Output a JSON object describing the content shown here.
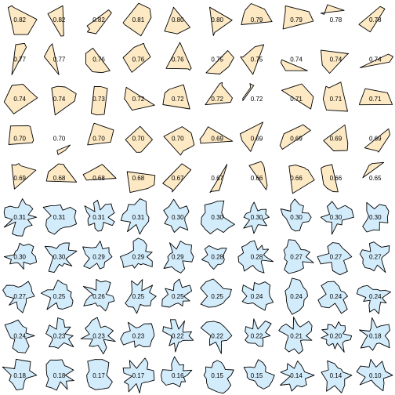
{
  "colors": {
    "high_fill": "#fde9c4",
    "low_fill": "#d3ecfb",
    "stroke": "#000000",
    "background": "#ffffff"
  },
  "grid": {
    "rows": 10,
    "cols": 10
  },
  "shapes": [
    {
      "label": "0.82",
      "kind": "convex"
    },
    {
      "label": "0.82",
      "kind": "convex"
    },
    {
      "label": "0.82",
      "kind": "convex"
    },
    {
      "label": "0.81",
      "kind": "convex"
    },
    {
      "label": "0.80",
      "kind": "convex"
    },
    {
      "label": "0.80",
      "kind": "convex"
    },
    {
      "label": "0.79",
      "kind": "convex"
    },
    {
      "label": "0.79",
      "kind": "convex"
    },
    {
      "label": "0.78",
      "kind": "convex"
    },
    {
      "label": "0.78",
      "kind": "convex"
    },
    {
      "label": "0.77",
      "kind": "convex"
    },
    {
      "label": "0.77",
      "kind": "convex"
    },
    {
      "label": "0.76",
      "kind": "convex"
    },
    {
      "label": "0.76",
      "kind": "convex"
    },
    {
      "label": "0.76",
      "kind": "convex"
    },
    {
      "label": "0.75",
      "kind": "convex"
    },
    {
      "label": "0.75",
      "kind": "convex"
    },
    {
      "label": "0.74",
      "kind": "convex"
    },
    {
      "label": "0.74",
      "kind": "convex"
    },
    {
      "label": "0.74",
      "kind": "convex"
    },
    {
      "label": "0.74",
      "kind": "convex"
    },
    {
      "label": "0.74",
      "kind": "convex"
    },
    {
      "label": "0.73",
      "kind": "convex"
    },
    {
      "label": "0.72",
      "kind": "convex"
    },
    {
      "label": "0.72",
      "kind": "convex"
    },
    {
      "label": "0.72",
      "kind": "convex"
    },
    {
      "label": "0.72",
      "kind": "convex"
    },
    {
      "label": "0.71",
      "kind": "convex"
    },
    {
      "label": "0.71",
      "kind": "convex"
    },
    {
      "label": "0.71",
      "kind": "convex"
    },
    {
      "label": "0.70",
      "kind": "convex"
    },
    {
      "label": "0.70",
      "kind": "convex"
    },
    {
      "label": "0.70",
      "kind": "convex"
    },
    {
      "label": "0.70",
      "kind": "convex"
    },
    {
      "label": "0.70",
      "kind": "convex"
    },
    {
      "label": "0.69",
      "kind": "convex"
    },
    {
      "label": "0.69",
      "kind": "convex"
    },
    {
      "label": "0.69",
      "kind": "convex"
    },
    {
      "label": "0.69",
      "kind": "convex"
    },
    {
      "label": "0.69",
      "kind": "convex"
    },
    {
      "label": "0.69",
      "kind": "convex"
    },
    {
      "label": "0.68",
      "kind": "convex"
    },
    {
      "label": "0.68",
      "kind": "convex"
    },
    {
      "label": "0.68",
      "kind": "convex"
    },
    {
      "label": "0.67",
      "kind": "convex"
    },
    {
      "label": "0.67",
      "kind": "convex"
    },
    {
      "label": "0.66",
      "kind": "convex"
    },
    {
      "label": "0.66",
      "kind": "convex"
    },
    {
      "label": "0.66",
      "kind": "convex"
    },
    {
      "label": "0.65",
      "kind": "convex"
    },
    {
      "label": "0.31",
      "kind": "jagged"
    },
    {
      "label": "0.31",
      "kind": "jagged"
    },
    {
      "label": "0.31",
      "kind": "jagged"
    },
    {
      "label": "0.31",
      "kind": "jagged"
    },
    {
      "label": "0.30",
      "kind": "jagged"
    },
    {
      "label": "0.30",
      "kind": "jagged"
    },
    {
      "label": "0.30",
      "kind": "jagged"
    },
    {
      "label": "0.30",
      "kind": "jagged"
    },
    {
      "label": "0.30",
      "kind": "jagged"
    },
    {
      "label": "0.30",
      "kind": "jagged"
    },
    {
      "label": "0.30",
      "kind": "jagged"
    },
    {
      "label": "0.30",
      "kind": "jagged"
    },
    {
      "label": "0.29",
      "kind": "jagged"
    },
    {
      "label": "0.29",
      "kind": "jagged"
    },
    {
      "label": "0.29",
      "kind": "jagged"
    },
    {
      "label": "0.28",
      "kind": "jagged"
    },
    {
      "label": "0.28",
      "kind": "jagged"
    },
    {
      "label": "0.27",
      "kind": "jagged"
    },
    {
      "label": "0.27",
      "kind": "jagged"
    },
    {
      "label": "0.27",
      "kind": "jagged"
    },
    {
      "label": "0.27",
      "kind": "jagged"
    },
    {
      "label": "0.25",
      "kind": "jagged"
    },
    {
      "label": "0.26",
      "kind": "jagged"
    },
    {
      "label": "0.25",
      "kind": "jagged"
    },
    {
      "label": "0.25",
      "kind": "jagged"
    },
    {
      "label": "0.25",
      "kind": "jagged"
    },
    {
      "label": "0.24",
      "kind": "jagged"
    },
    {
      "label": "0.24",
      "kind": "jagged"
    },
    {
      "label": "0.24",
      "kind": "jagged"
    },
    {
      "label": "0.24",
      "kind": "jagged"
    },
    {
      "label": "0.24",
      "kind": "jagged"
    },
    {
      "label": "0.23",
      "kind": "jagged"
    },
    {
      "label": "0.23",
      "kind": "jagged"
    },
    {
      "label": "0.23",
      "kind": "jagged"
    },
    {
      "label": "0.22",
      "kind": "jagged"
    },
    {
      "label": "0.22",
      "kind": "jagged"
    },
    {
      "label": "0.22",
      "kind": "jagged"
    },
    {
      "label": "0.21",
      "kind": "jagged"
    },
    {
      "label": "0.20",
      "kind": "jagged"
    },
    {
      "label": "0.18",
      "kind": "jagged"
    },
    {
      "label": "0.18",
      "kind": "jagged"
    },
    {
      "label": "0.18",
      "kind": "jagged"
    },
    {
      "label": "0.17",
      "kind": "jagged"
    },
    {
      "label": "0.17",
      "kind": "jagged"
    },
    {
      "label": "0.16",
      "kind": "jagged"
    },
    {
      "label": "0.15",
      "kind": "jagged"
    },
    {
      "label": "0.15",
      "kind": "jagged"
    },
    {
      "label": "0.14",
      "kind": "jagged"
    },
    {
      "label": "0.14",
      "kind": "jagged"
    },
    {
      "label": "0.10",
      "kind": "jagged"
    }
  ]
}
